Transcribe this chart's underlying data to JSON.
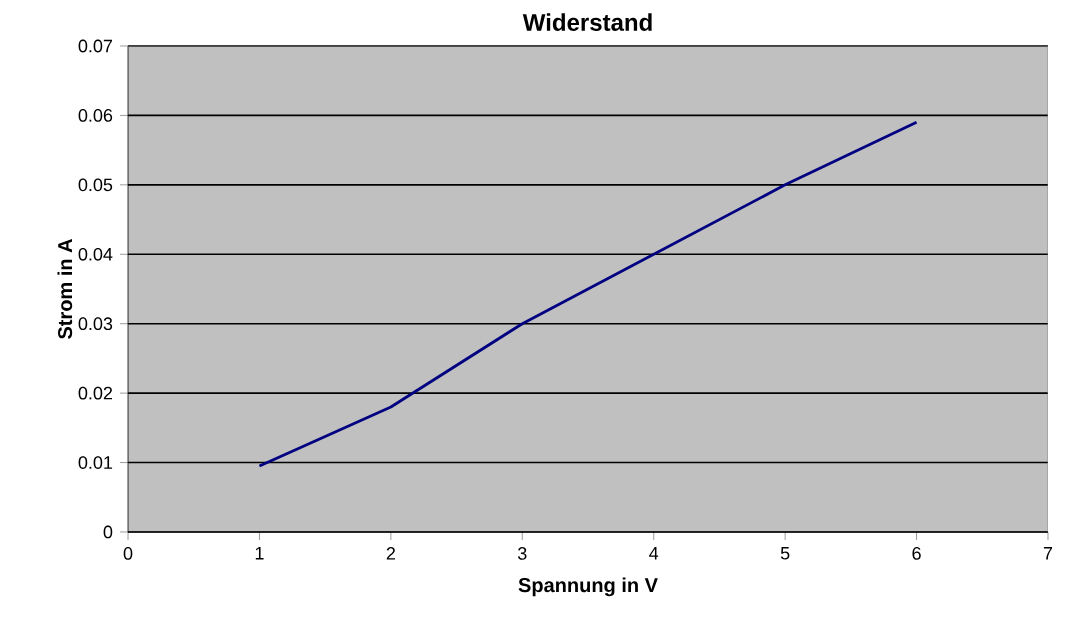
{
  "chart_data": {
    "type": "line",
    "title": "Widerstand",
    "xlabel": "Spannung in V",
    "ylabel": "Strom in A",
    "x": [
      1,
      2,
      3,
      4,
      5,
      6
    ],
    "series": [
      {
        "color": "#000080",
        "values": [
          0.0095,
          0.018,
          0.03,
          0.04,
          0.05,
          0.059
        ]
      }
    ],
    "xlim": [
      0,
      7
    ],
    "xticks": [
      0,
      1,
      2,
      3,
      4,
      5,
      6,
      7
    ],
    "ylim": [
      0,
      0.07
    ],
    "yticks": [
      0,
      0.01,
      0.02,
      0.03,
      0.04,
      0.05,
      0.06,
      0.07
    ],
    "grid": "y",
    "marker": "none",
    "line_style": "solid"
  }
}
